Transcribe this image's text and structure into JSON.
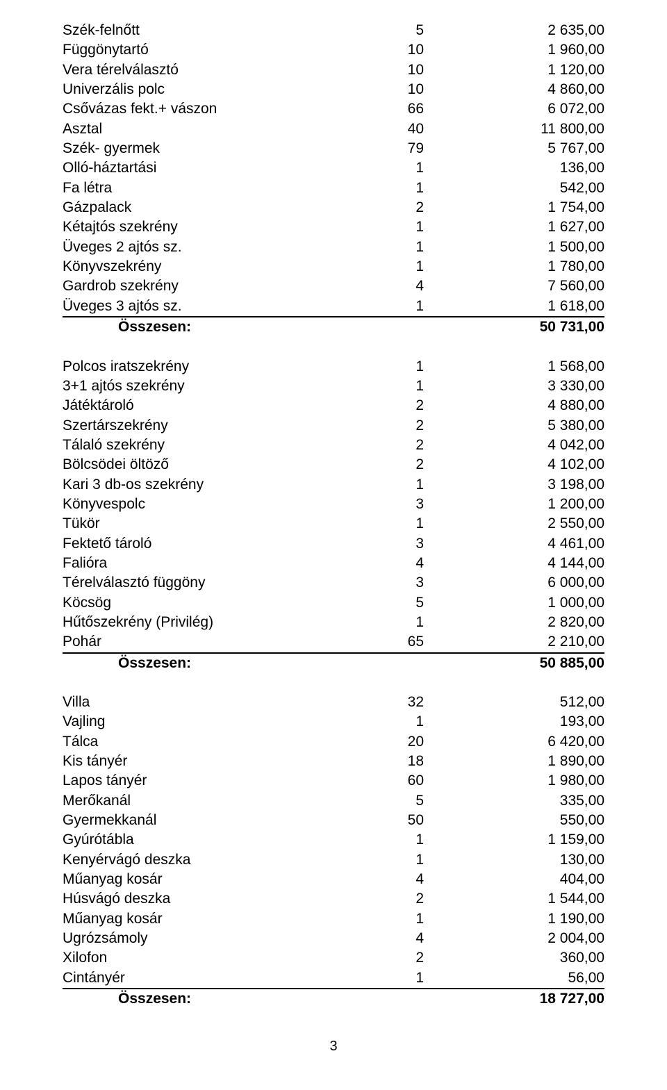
{
  "sections": [
    {
      "rows": [
        {
          "name": "Szék-felnőtt",
          "qty": "5",
          "val": "2 635,00"
        },
        {
          "name": "Függönytartó",
          "qty": "10",
          "val": "1 960,00"
        },
        {
          "name": "Vera térelválasztó",
          "qty": "10",
          "val": "1 120,00"
        },
        {
          "name": "Univerzális polc",
          "qty": "10",
          "val": "4 860,00"
        },
        {
          "name": "Csővázas fekt.+ vászon",
          "qty": "66",
          "val": "6 072,00"
        },
        {
          "name": "Asztal",
          "qty": "40",
          "val": "11 800,00"
        },
        {
          "name": "Szék- gyermek",
          "qty": "79",
          "val": "5 767,00"
        },
        {
          "name": "Olló-háztartási",
          "qty": "1",
          "val": "136,00"
        },
        {
          "name": "Fa létra",
          "qty": "1",
          "val": "542,00"
        },
        {
          "name": "Gázpalack",
          "qty": "2",
          "val": "1 754,00"
        },
        {
          "name": "Kétajtós szekrény",
          "qty": "1",
          "val": "1 627,00"
        },
        {
          "name": "Üveges 2 ajtós sz.",
          "qty": "1",
          "val": "1 500,00"
        },
        {
          "name": "Könyvszekrény",
          "qty": "1",
          "val": "1 780,00"
        },
        {
          "name": "Gardrob szekrény",
          "qty": "4",
          "val": "7 560,00"
        },
        {
          "name": "Üveges 3 ajtós sz.",
          "qty": "1",
          "val": "1 618,00"
        }
      ],
      "total": {
        "label": "Összesen:",
        "val": "50 731,00"
      }
    },
    {
      "rows": [
        {
          "name": "Polcos iratszekrény",
          "qty": "1",
          "val": "1 568,00"
        },
        {
          "name": "3+1 ajtós szekrény",
          "qty": "1",
          "val": "3 330,00"
        },
        {
          "name": "Játéktároló",
          "qty": "2",
          "val": "4 880,00"
        },
        {
          "name": "Szertárszekrény",
          "qty": "2",
          "val": "5 380,00"
        },
        {
          "name": "Tálaló szekrény",
          "qty": "2",
          "val": "4 042,00"
        },
        {
          "name": "Bölcsödei öltöző",
          "qty": "2",
          "val": "4 102,00"
        },
        {
          "name": "Kari 3 db-os szekrény",
          "qty": "1",
          "val": "3 198,00"
        },
        {
          "name": "Könyvespolc",
          "qty": "3",
          "val": "1 200,00"
        },
        {
          "name": "Tükör",
          "qty": "1",
          "val": "2 550,00"
        },
        {
          "name": "Fektető tároló",
          "qty": "3",
          "val": "4 461,00"
        },
        {
          "name": "Falióra",
          "qty": "4",
          "val": "4 144,00"
        },
        {
          "name": "Térelválasztó függöny",
          "qty": "3",
          "val": "6 000,00"
        },
        {
          "name": "Köcsög",
          "qty": "5",
          "val": "1 000,00"
        },
        {
          "name": "Hűtőszekrény (Privilég)",
          "qty": "1",
          "val": "2 820,00"
        },
        {
          "name": "Pohár",
          "qty": "65",
          "val": "2 210,00"
        }
      ],
      "total": {
        "label": "Összesen:",
        "val": "50 885,00"
      }
    },
    {
      "rows": [
        {
          "name": "Villa",
          "qty": "32",
          "val": "512,00"
        },
        {
          "name": "Vajling",
          "qty": "1",
          "val": "193,00"
        },
        {
          "name": "Tálca",
          "qty": "20",
          "val": "6 420,00"
        },
        {
          "name": "Kis tányér",
          "qty": "18",
          "val": "1 890,00"
        },
        {
          "name": "Lapos tányér",
          "qty": "60",
          "val": "1 980,00"
        },
        {
          "name": "Merőkanál",
          "qty": "5",
          "val": "335,00"
        },
        {
          "name": "Gyermekkanál",
          "qty": "50",
          "val": "550,00"
        },
        {
          "name": "Gyúrótábla",
          "qty": "1",
          "val": "1 159,00"
        },
        {
          "name": "Kenyérvágó deszka",
          "qty": "1",
          "val": "130,00"
        },
        {
          "name": "Műanyag kosár",
          "qty": "4",
          "val": "404,00"
        },
        {
          "name": "Húsvágó deszka",
          "qty": "2",
          "val": "1 544,00"
        },
        {
          "name": "Műanyag kosár",
          "qty": "1",
          "val": "1 190,00"
        },
        {
          "name": "Ugrózsámoly",
          "qty": "4",
          "val": "2 004,00"
        },
        {
          "name": "Xilofon",
          "qty": "2",
          "val": "360,00"
        },
        {
          "name": "Cintányér",
          "qty": "1",
          "val": "56,00"
        }
      ],
      "total": {
        "label": "Összesen:",
        "val": "18 727,00"
      }
    }
  ],
  "page_number": "3"
}
